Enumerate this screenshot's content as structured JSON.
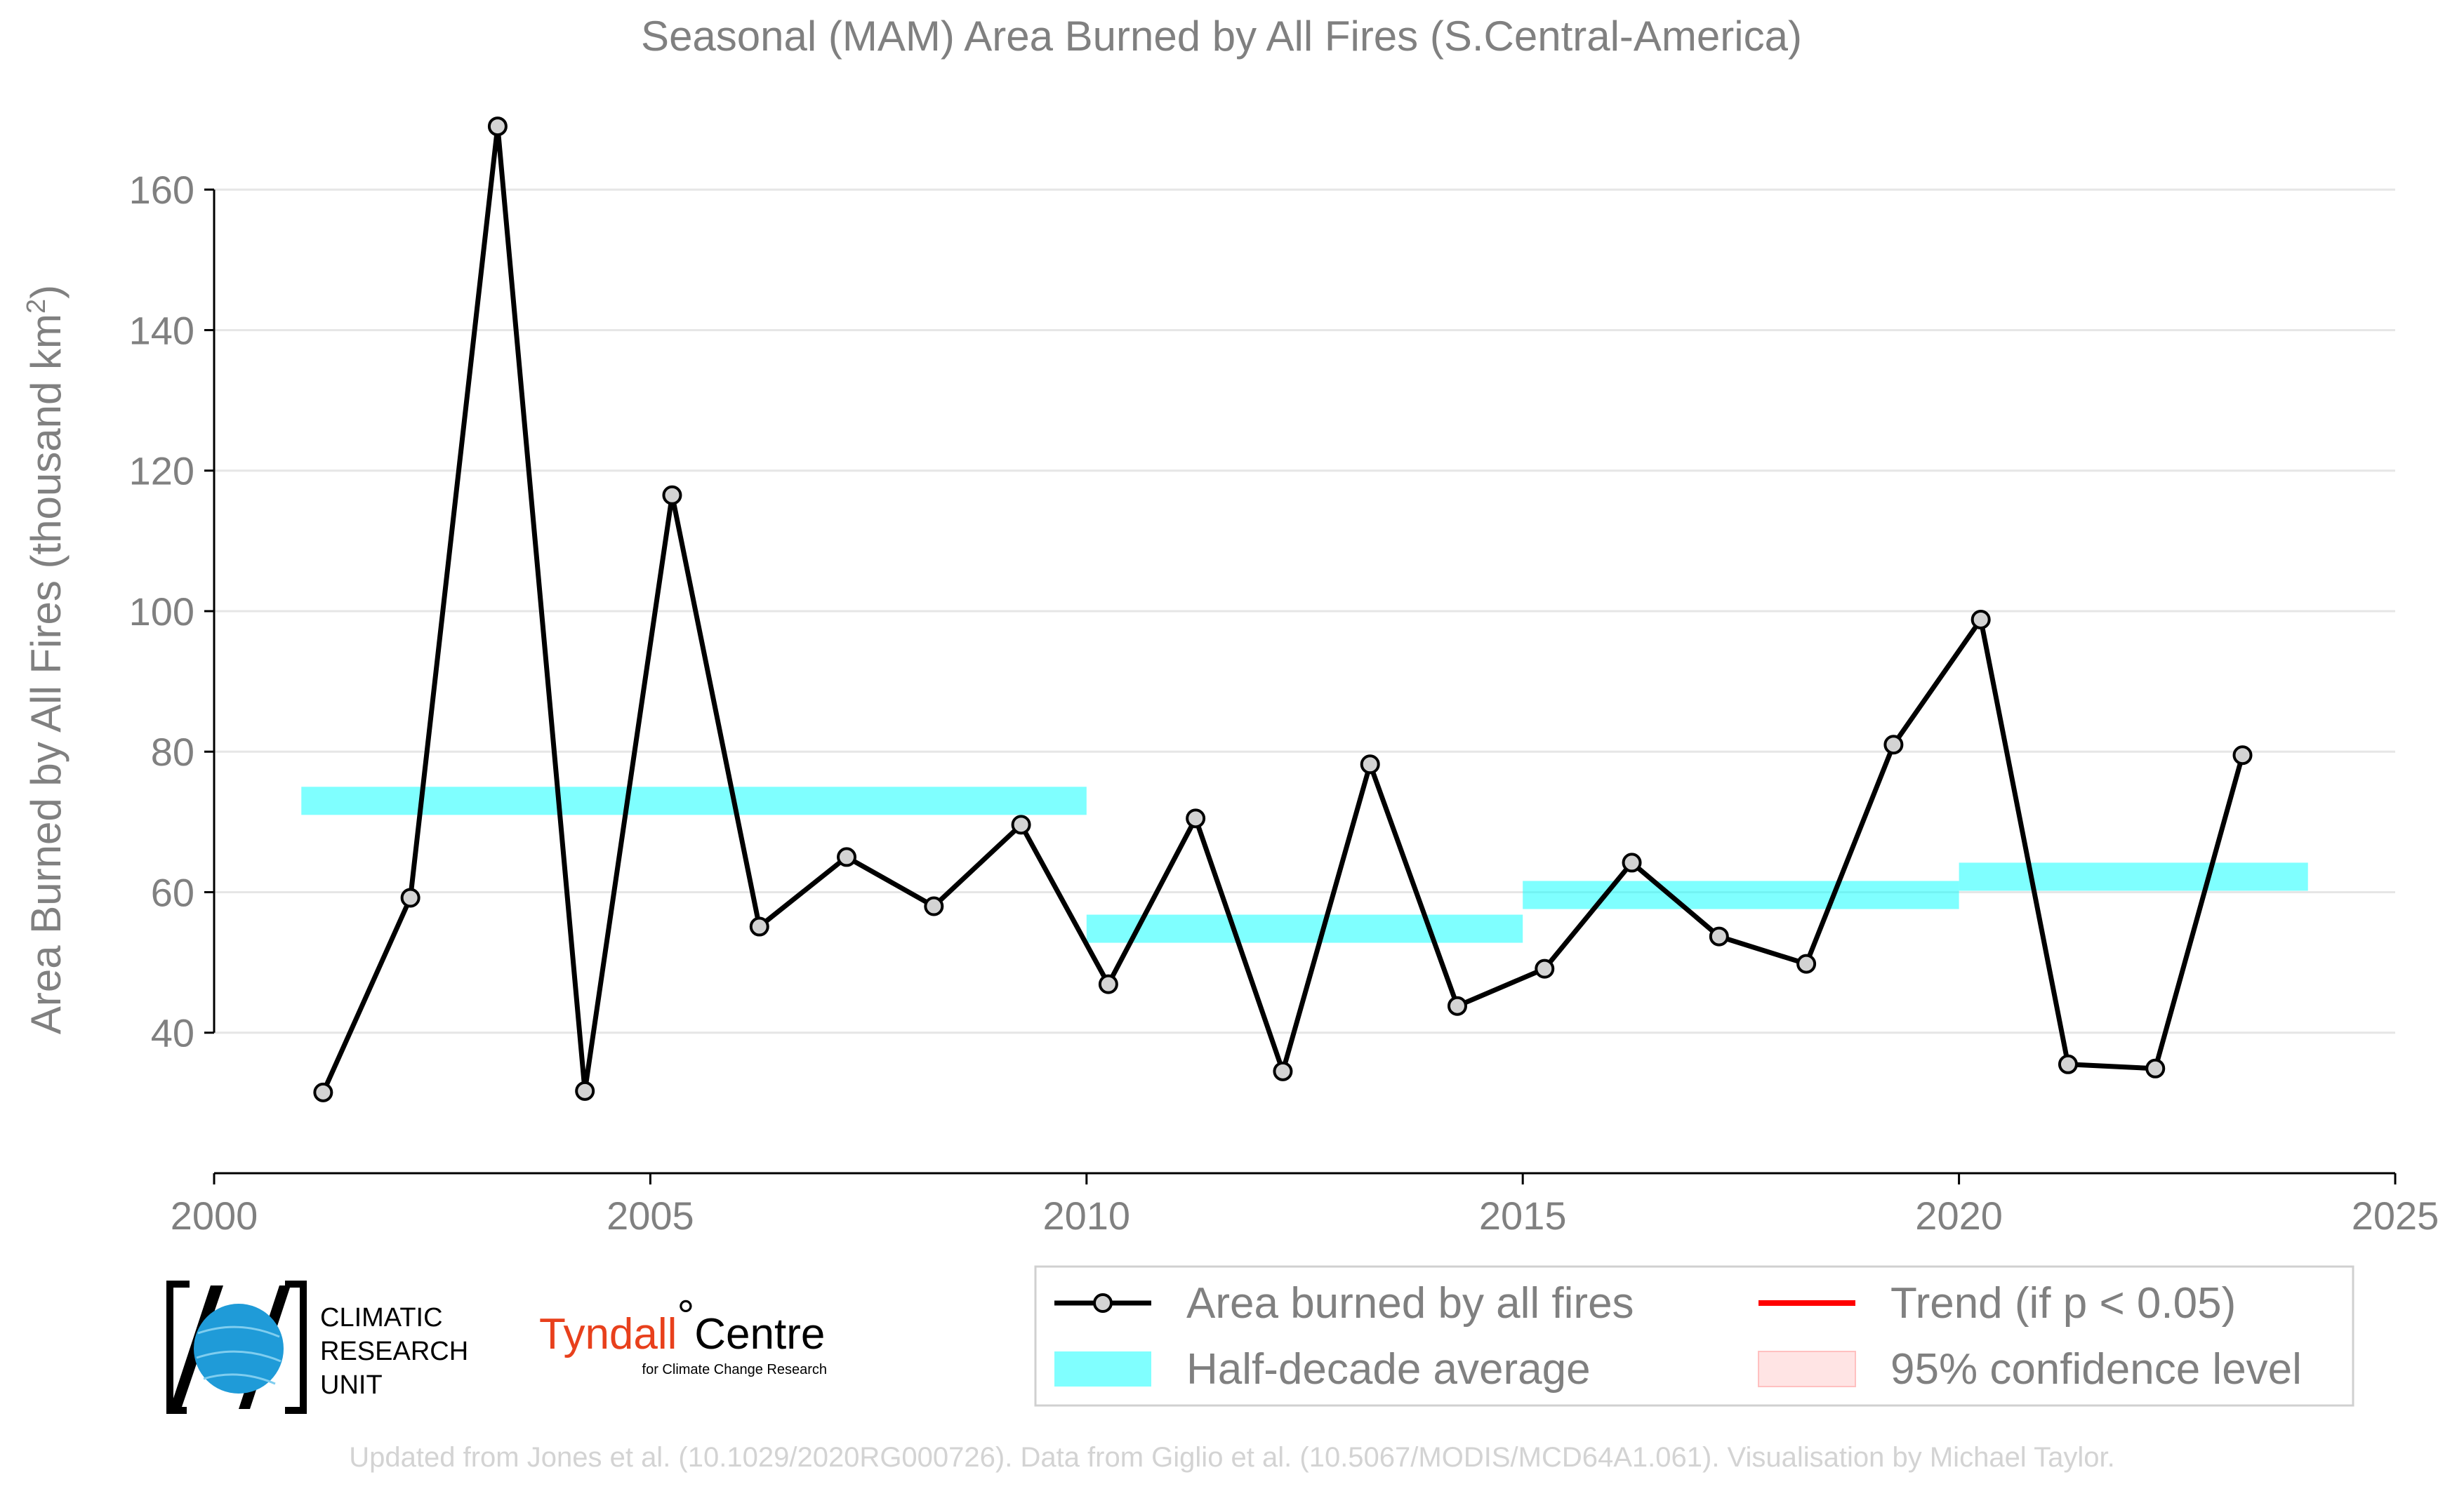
{
  "chart_data": {
    "type": "line",
    "title": "Seasonal (MAM) Area Burned by All Fires (S.Central-America)",
    "ylabel": "Area Burned by All Fires (thousand km",
    "ylabel_sup": "2",
    "ylabel_close": ")",
    "xlim": [
      2000,
      2025
    ],
    "ylim": [
      20,
      175
    ],
    "x_ticks": [
      2000,
      2005,
      2010,
      2015,
      2020,
      2025
    ],
    "y_ticks": [
      40,
      60,
      80,
      100,
      120,
      140,
      160
    ],
    "grid": true,
    "series": [
      {
        "name": "Area burned by all fires",
        "color": "#000000",
        "marker_fill": "#d3d3d3",
        "points": [
          {
            "x": 2001.25,
            "y": 31.5
          },
          {
            "x": 2002.25,
            "y": 59.2
          },
          {
            "x": 2003.25,
            "y": 169.0
          },
          {
            "x": 2004.25,
            "y": 31.7
          },
          {
            "x": 2005.25,
            "y": 116.5
          },
          {
            "x": 2006.25,
            "y": 55.1
          },
          {
            "x": 2007.25,
            "y": 65.0
          },
          {
            "x": 2008.25,
            "y": 58.0
          },
          {
            "x": 2009.25,
            "y": 69.6
          },
          {
            "x": 2010.25,
            "y": 46.9
          },
          {
            "x": 2011.25,
            "y": 70.5
          },
          {
            "x": 2012.25,
            "y": 34.5
          },
          {
            "x": 2013.25,
            "y": 78.2
          },
          {
            "x": 2014.25,
            "y": 43.8
          },
          {
            "x": 2015.25,
            "y": 49.1
          },
          {
            "x": 2016.25,
            "y": 64.2
          },
          {
            "x": 2017.25,
            "y": 53.7
          },
          {
            "x": 2018.25,
            "y": 49.8
          },
          {
            "x": 2019.25,
            "y": 81.0
          },
          {
            "x": 2020.25,
            "y": 98.8
          },
          {
            "x": 2021.25,
            "y": 35.5
          },
          {
            "x": 2022.25,
            "y": 34.9
          },
          {
            "x": 2023.25,
            "y": 79.5
          }
        ]
      },
      {
        "name": "Half-decade average",
        "color": "#00ffff",
        "segments": [
          {
            "x0": 2001,
            "x1": 2010,
            "low": 71.0,
            "high": 75.0
          },
          {
            "x0": 2010,
            "x1": 2015,
            "low": 52.8,
            "high": 56.8
          },
          {
            "x0": 2015,
            "x1": 2020,
            "low": 57.6,
            "high": 61.6
          },
          {
            "x0": 2020,
            "x1": 2024,
            "low": 60.2,
            "high": 64.2
          }
        ]
      }
    ],
    "legend": {
      "placement": "bottom-right",
      "items": [
        {
          "label": "Area burned by all fires",
          "kind": "line-marker",
          "color": "#000000"
        },
        {
          "label": "Trend (if p < 0.05)",
          "kind": "line",
          "color": "#ff0000"
        },
        {
          "label": "Half-decade average",
          "kind": "patch",
          "color": "#80ffff"
        },
        {
          "label": "95% confidence level",
          "kind": "patch",
          "color": "#ffe4e4"
        }
      ]
    }
  },
  "logos": {
    "cru_line1": "CLIMATIC",
    "cru_line2": "RESEARCH",
    "cru_line3": "UNIT",
    "tyndall_name": "Tyndall",
    "tyndall_degree": "°",
    "tyndall_centre": "Centre",
    "tyndall_sub": "for Climate Change Research"
  },
  "credit": "Updated from Jones et al. (10.1029/2020RG000726). Data from Giglio et al. (10.5067/MODIS/MCD64A1.061). Visualisation by Michael Taylor."
}
